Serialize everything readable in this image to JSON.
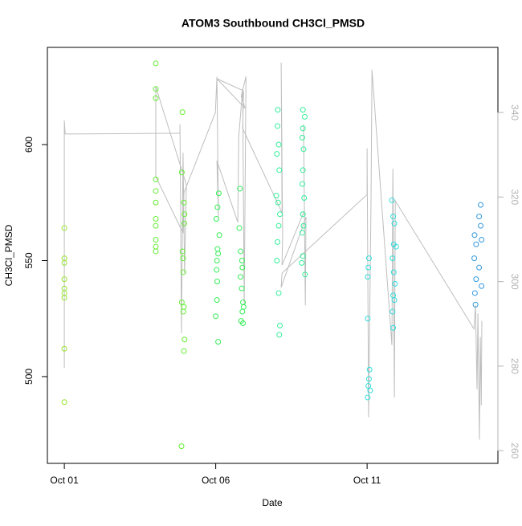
{
  "chart_data": {
    "type": "scatter",
    "title": "ATOM3 Southbound CH3Cl_PMSD",
    "xlabel": "Date",
    "ylabel": "CH3Cl_PMSD",
    "xlim": [
      0.44,
      15.32
    ],
    "xticks": [
      {
        "value": 1,
        "label": "Oct 01"
      },
      {
        "value": 6,
        "label": "Oct 06"
      },
      {
        "value": 11,
        "label": "Oct 11"
      }
    ],
    "ylim": [
      462.6,
      641.9
    ],
    "yticks": [
      500,
      550,
      600
    ],
    "y2lim": [
      257,
      355.4
    ],
    "y2ticks": [
      260,
      280,
      300,
      320,
      340
    ],
    "series": [
      {
        "color": "#99e633",
        "x": [
          1,
          1,
          1,
          1,
          1,
          1,
          1,
          1,
          1
        ],
        "values": [
          564,
          551,
          549,
          542,
          538,
          536,
          534,
          512,
          489
        ]
      },
      {
        "color": "#66ee33",
        "x": [
          4.02,
          4.02,
          4.02,
          4.02,
          4.02,
          4.02,
          4.02,
          4.02,
          4.02,
          4.02,
          4.02,
          4.9,
          4.88,
          4.95,
          4.97,
          4.96,
          4.9,
          4.92,
          4.93,
          4.88,
          4.95,
          4.93,
          4.97,
          4.95,
          4.87
        ],
        "values": [
          635,
          624,
          620,
          585,
          580,
          575,
          568,
          565,
          559,
          556,
          554,
          614,
          588,
          575,
          570,
          566,
          554,
          551,
          545,
          532,
          530,
          528,
          516,
          511,
          470
        ]
      },
      {
        "color": "#33ee55",
        "x": [
          6.1,
          6.06,
          6.02,
          6.12,
          6.06,
          6.08,
          6.04,
          6.03,
          6.05,
          6.04,
          6.0,
          6.08,
          6.8,
          6.78,
          6.82,
          6.87,
          6.88,
          6.82,
          6.86,
          6.9,
          6.92,
          6.88,
          6.84,
          6.9
        ],
        "values": [
          579,
          573,
          568,
          561,
          555,
          553,
          550,
          546,
          541,
          533,
          526,
          515,
          581,
          564,
          554,
          550,
          547,
          543,
          538,
          532,
          530,
          528,
          524,
          523
        ]
      },
      {
        "color": "#33ee99",
        "x": [
          8.05,
          8.04,
          8.08,
          8.02,
          8.1,
          8.0,
          8.06,
          8.12,
          8.08,
          8.04,
          8.02,
          8.08,
          8.12,
          8.1,
          8.88,
          8.94,
          8.88,
          8.86,
          8.9,
          8.88,
          8.86,
          8.92,
          8.88,
          8.9,
          8.86,
          8.88,
          8.84,
          8.95
        ],
        "values": [
          615,
          608,
          600,
          596,
          589,
          578,
          575,
          570,
          565,
          558,
          550,
          536,
          522,
          518,
          615,
          612,
          607,
          603,
          598,
          589,
          583,
          577,
          570,
          565,
          562,
          552,
          549,
          544
        ]
      },
      {
        "color": "#33dddd",
        "x": [
          11.06,
          11.04,
          11.02,
          11.02,
          11.08,
          11.06,
          11.04,
          11.1,
          11.02,
          11.82,
          11.86,
          11.9,
          11.96,
          11.84,
          11.88,
          11.92,
          11.86,
          11.9,
          11.84,
          11.86,
          11.88
        ],
        "values": [
          551,
          547,
          543,
          525,
          503,
          499,
          496,
          494,
          491,
          576,
          569,
          566,
          556,
          551,
          545,
          540,
          535,
          533,
          528,
          521,
          557
        ]
      },
      {
        "color": "#3399dd",
        "x": [
          14.75,
          14.7,
          14.75,
          14.55,
          14.78,
          14.6,
          14.54,
          14.7,
          14.6,
          14.78,
          14.56,
          14.58
        ],
        "values": [
          574,
          569,
          565,
          561,
          559,
          557,
          551,
          547,
          542,
          539,
          536,
          531
        ]
      }
    ],
    "line": {
      "axis": "y2",
      "color": "#bebebe",
      "x": [
        1.0,
        1.0,
        1.03,
        4.82,
        4.82,
        4.87,
        4.92,
        4.97,
        5.03,
        4.02,
        4.02,
        4.92,
        4.95,
        5.99,
        6.04,
        6.09,
        6.04,
        6.73,
        6.76,
        6.89,
        6.94,
        7.0,
        6.84,
        6.97,
        6.04,
        6.92,
        6.89,
        8.19,
        8.16,
        8.21,
        8.19,
        8.93,
        8.9,
        8.96,
        8.98,
        8.16,
        8.19,
        11.0,
        11.0,
        11.05,
        11.13,
        11.16,
        11.82,
        11.85,
        11.9,
        11.93,
        14.53,
        14.58,
        14.63,
        14.66,
        14.71,
        14.74,
        14.77,
        14.79
      ],
      "values": [
        279.6,
        338.1,
        334.9,
        335.1,
        337.2,
        287.8,
        330.5,
        302.0,
        322.9,
        346.1,
        324.8,
        311.5,
        321.0,
        340.0,
        348.4,
        315.3,
        328.6,
        314.0,
        334.3,
        345.7,
        294.4,
        348.5,
        343.8,
        341.0,
        348.0,
        345.1,
        336.2,
        316.3,
        351.8,
        311.5,
        303.9,
        316.8,
        337.2,
        294.4,
        315.3,
        298.6,
        302.0,
        320.6,
        331.5,
        267.9,
        319.1,
        350.1,
        285.0,
        326.7,
        272.6,
        319.1,
        288.8,
        294.4,
        274.5,
        292.5,
        262.6,
        286.9,
        270.7,
        290.7
      ]
    }
  }
}
